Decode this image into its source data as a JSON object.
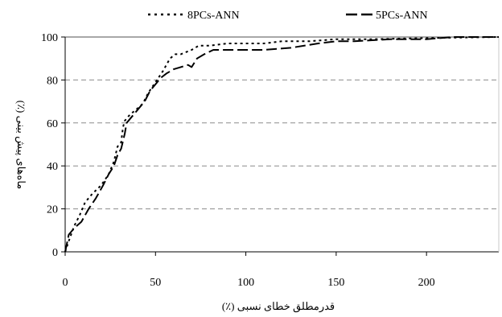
{
  "chart_data": {
    "type": "line",
    "xlabel": "قدرمطلق خطای نسبی (٪)",
    "ylabel": "ماه‌های پیش بینی (٪)",
    "xlim": [
      0,
      240
    ],
    "ylim": [
      0,
      100
    ],
    "x_ticks": [
      0,
      50,
      100,
      150,
      200
    ],
    "y_ticks": [
      0,
      20,
      40,
      60,
      80,
      100
    ],
    "grid": "horizontal-dashed",
    "legend_position": "top",
    "series": [
      {
        "name": "8PCs-ANN",
        "style": "dotted",
        "color": "#000000",
        "points": [
          [
            0,
            0
          ],
          [
            2,
            5
          ],
          [
            5,
            12
          ],
          [
            8,
            17
          ],
          [
            11,
            23
          ],
          [
            15,
            27
          ],
          [
            20,
            31
          ],
          [
            24,
            36
          ],
          [
            27,
            42
          ],
          [
            29,
            49
          ],
          [
            31,
            51
          ],
          [
            32,
            58
          ],
          [
            33,
            61
          ],
          [
            36,
            64
          ],
          [
            39,
            66
          ],
          [
            43,
            69
          ],
          [
            46,
            74
          ],
          [
            50,
            79
          ],
          [
            54,
            84
          ],
          [
            58,
            90
          ],
          [
            61,
            92
          ],
          [
            64,
            92
          ],
          [
            67,
            93
          ],
          [
            70,
            94
          ],
          [
            74,
            96
          ],
          [
            80,
            96
          ],
          [
            90,
            97
          ],
          [
            100,
            97
          ],
          [
            110,
            97
          ],
          [
            120,
            98
          ],
          [
            135,
            98
          ],
          [
            150,
            99
          ],
          [
            170,
            99
          ],
          [
            200,
            99.5
          ],
          [
            240,
            100
          ]
        ]
      },
      {
        "name": "5PCs-ANN",
        "style": "dashed",
        "color": "#000000",
        "points": [
          [
            0,
            0
          ],
          [
            2,
            8
          ],
          [
            5,
            11
          ],
          [
            9,
            14
          ],
          [
            13,
            20
          ],
          [
            17,
            25
          ],
          [
            21,
            31
          ],
          [
            24,
            36
          ],
          [
            27,
            40
          ],
          [
            29,
            45
          ],
          [
            31,
            48
          ],
          [
            33,
            55
          ],
          [
            34,
            60
          ],
          [
            37,
            63
          ],
          [
            40,
            66
          ],
          [
            44,
            70
          ],
          [
            47,
            75
          ],
          [
            50,
            78
          ],
          [
            53,
            81
          ],
          [
            56,
            83
          ],
          [
            60,
            85
          ],
          [
            64,
            86
          ],
          [
            68,
            87
          ],
          [
            70,
            86
          ],
          [
            73,
            90
          ],
          [
            77,
            92
          ],
          [
            82,
            94
          ],
          [
            90,
            94
          ],
          [
            100,
            94
          ],
          [
            110,
            94
          ],
          [
            125,
            95
          ],
          [
            140,
            97
          ],
          [
            150,
            98
          ],
          [
            160,
            98
          ],
          [
            180,
            99
          ],
          [
            200,
            99
          ],
          [
            215,
            100
          ],
          [
            240,
            100
          ]
        ]
      }
    ]
  }
}
